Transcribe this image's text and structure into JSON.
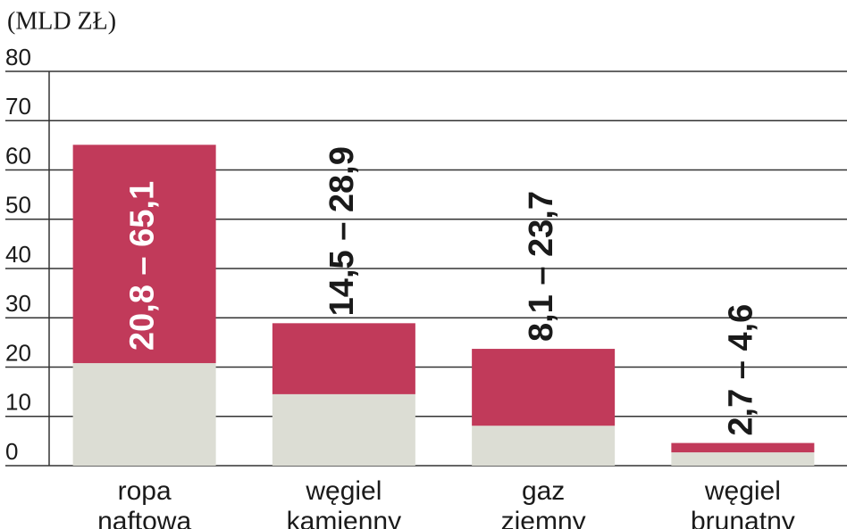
{
  "chart_data": {
    "type": "range_bar",
    "y_label": "(MLD ZŁ)",
    "categories": [
      [
        "ropa",
        "naftowa"
      ],
      [
        "węgiel",
        "kamienny"
      ],
      [
        "gaz",
        "ziemny"
      ],
      [
        "węgiel",
        "brunatny"
      ]
    ],
    "series": [
      {
        "color": "#dcddd4",
        "values": [
          20.8,
          14.5,
          8.1,
          2.7
        ]
      },
      {
        "color": "#c13a5a",
        "values": [
          65.1,
          28.9,
          23.7,
          4.6
        ]
      }
    ],
    "value_labels": [
      "20,8 – 65,1",
      "14,5 – 28,9",
      "8,1 – 23,7",
      "2,7 – 4,6"
    ],
    "ylim": [
      0,
      80
    ],
    "yticks": [
      0,
      10,
      20,
      30,
      40,
      50,
      60,
      70,
      80
    ],
    "grid": true
  }
}
